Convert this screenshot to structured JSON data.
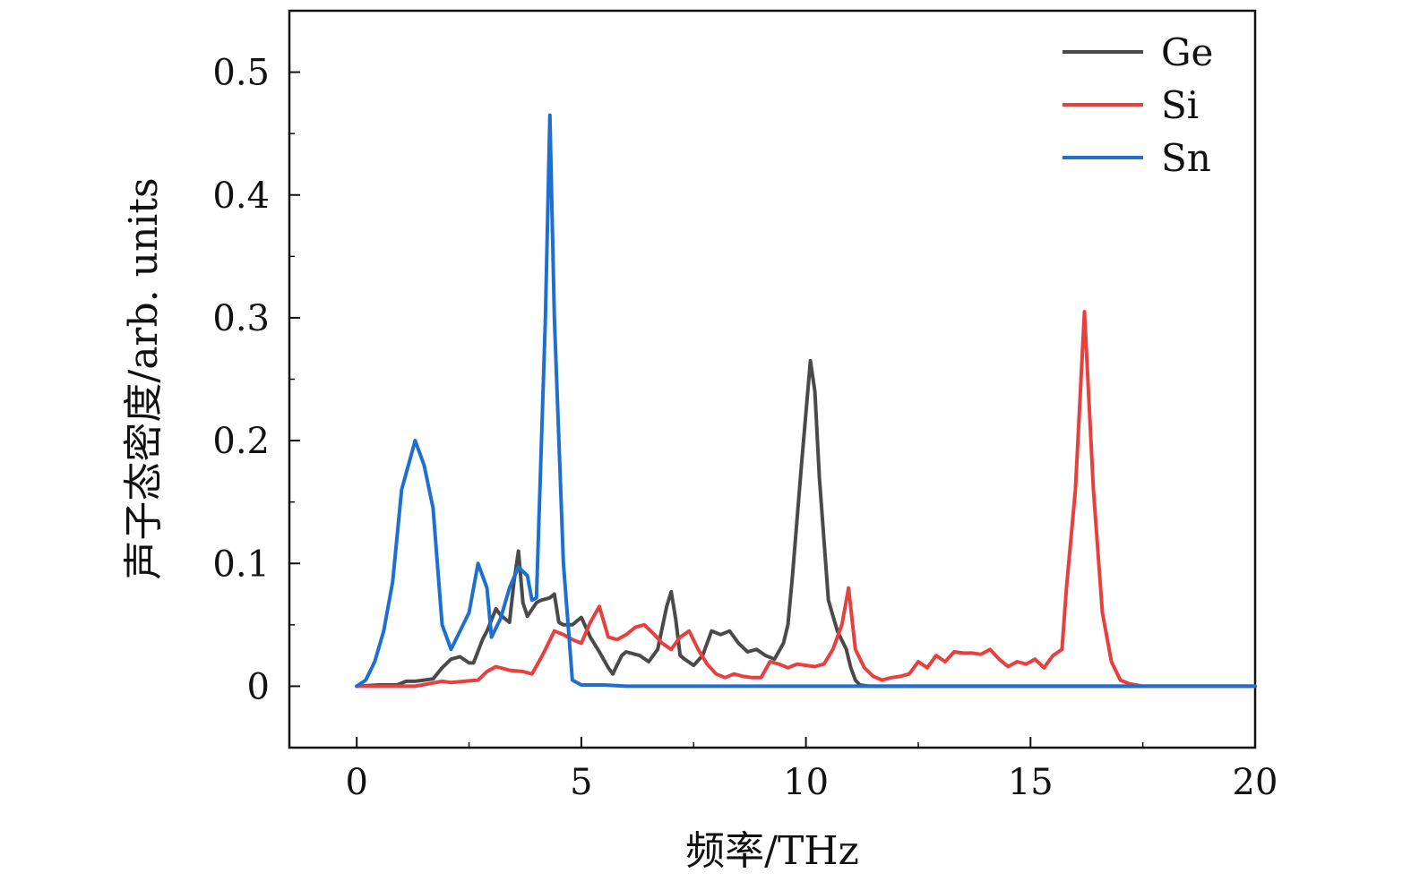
{
  "chart_data": {
    "type": "line",
    "title": "",
    "xlabel": "频率/THz",
    "ylabel": "声子态密度/arb. units",
    "xlim": [
      -1.5,
      20
    ],
    "ylim": [
      -0.05,
      0.55
    ],
    "xticks": [
      0,
      5,
      10,
      15,
      20
    ],
    "xtick_labels": [
      "0",
      "5",
      "10",
      "15",
      "20"
    ],
    "yticks": [
      0,
      0.1,
      0.2,
      0.3,
      0.4,
      0.5
    ],
    "ytick_labels": [
      "0",
      "0.1",
      "0.2",
      "0.3",
      "0.4",
      "0.5"
    ],
    "grid": false,
    "legend_position": "top-right",
    "series": [
      {
        "name": "Ge",
        "color": "#4a4a4a",
        "x": [
          0,
          0.5,
          0.9,
          1.1,
          1.3,
          1.5,
          1.7,
          1.9,
          2.1,
          2.3,
          2.5,
          2.6,
          2.8,
          2.9,
          3.1,
          3.2,
          3.4,
          3.5,
          3.6,
          3.7,
          3.8,
          4.0,
          4.1,
          4.3,
          4.4,
          4.5,
          4.6,
          4.8,
          5.0,
          5.1,
          5.2,
          5.4,
          5.6,
          5.7,
          5.9,
          6.0,
          6.2,
          6.3,
          6.5,
          6.7,
          6.9,
          7.0,
          7.1,
          7.2,
          7.3,
          7.5,
          7.7,
          7.9,
          8.1,
          8.3,
          8.5,
          8.7,
          8.9,
          9.1,
          9.3,
          9.5,
          9.6,
          9.7,
          9.9,
          10.1,
          10.2,
          10.3,
          10.5,
          10.7,
          10.9,
          11.0,
          11.1,
          11.2,
          11.4,
          12,
          14,
          16,
          18,
          20
        ],
        "y": [
          0,
          0.001,
          0.001,
          0.004,
          0.004,
          0.005,
          0.006,
          0.015,
          0.022,
          0.024,
          0.019,
          0.019,
          0.038,
          0.045,
          0.063,
          0.058,
          0.052,
          0.085,
          0.11,
          0.068,
          0.057,
          0.068,
          0.07,
          0.072,
          0.075,
          0.052,
          0.05,
          0.05,
          0.056,
          0.048,
          0.04,
          0.028,
          0.015,
          0.01,
          0.025,
          0.028,
          0.026,
          0.025,
          0.02,
          0.03,
          0.065,
          0.077,
          0.055,
          0.025,
          0.022,
          0.017,
          0.025,
          0.045,
          0.042,
          0.045,
          0.035,
          0.028,
          0.03,
          0.025,
          0.022,
          0.035,
          0.05,
          0.09,
          0.18,
          0.265,
          0.24,
          0.17,
          0.07,
          0.045,
          0.03,
          0.015,
          0.005,
          0.001,
          0,
          0,
          0,
          0,
          0,
          0
        ]
      },
      {
        "name": "Si",
        "color": "#e8403e",
        "x": [
          0,
          0.5,
          1.0,
          1.3,
          1.6,
          1.9,
          2.1,
          2.4,
          2.7,
          2.9,
          3.1,
          3.4,
          3.7,
          3.9,
          4.1,
          4.2,
          4.4,
          4.6,
          4.8,
          5.0,
          5.2,
          5.4,
          5.6,
          5.8,
          6.0,
          6.2,
          6.4,
          6.6,
          6.8,
          7.0,
          7.2,
          7.4,
          7.6,
          7.8,
          8.0,
          8.2,
          8.4,
          8.6,
          8.8,
          9.0,
          9.2,
          9.4,
          9.6,
          9.8,
          10.0,
          10.2,
          10.4,
          10.6,
          10.8,
          10.95,
          11.1,
          11.3,
          11.5,
          11.7,
          11.9,
          12.1,
          12.3,
          12.5,
          12.7,
          12.9,
          13.1,
          13.3,
          13.5,
          13.7,
          13.9,
          14.1,
          14.3,
          14.5,
          14.7,
          14.9,
          15.1,
          15.3,
          15.5,
          15.7,
          15.8,
          16.0,
          16.2,
          16.4,
          16.6,
          16.8,
          17.0,
          17.2,
          17.5,
          18,
          20
        ],
        "y": [
          0,
          0,
          0,
          0,
          0.002,
          0.004,
          0.003,
          0.004,
          0.005,
          0.012,
          0.016,
          0.013,
          0.012,
          0.01,
          0.023,
          0.03,
          0.045,
          0.042,
          0.038,
          0.035,
          0.052,
          0.065,
          0.04,
          0.038,
          0.042,
          0.048,
          0.05,
          0.043,
          0.035,
          0.03,
          0.04,
          0.045,
          0.03,
          0.018,
          0.01,
          0.007,
          0.01,
          0.008,
          0.007,
          0.007,
          0.02,
          0.018,
          0.015,
          0.018,
          0.017,
          0.016,
          0.018,
          0.03,
          0.05,
          0.08,
          0.03,
          0.015,
          0.008,
          0.005,
          0.007,
          0.008,
          0.01,
          0.02,
          0.015,
          0.025,
          0.02,
          0.028,
          0.027,
          0.027,
          0.026,
          0.03,
          0.022,
          0.016,
          0.02,
          0.018,
          0.022,
          0.015,
          0.025,
          0.03,
          0.08,
          0.16,
          0.305,
          0.16,
          0.06,
          0.02,
          0.005,
          0.002,
          0,
          0,
          0
        ]
      },
      {
        "name": "Sn",
        "color": "#1f6fd1",
        "x": [
          0,
          0.2,
          0.4,
          0.6,
          0.8,
          1.0,
          1.3,
          1.5,
          1.7,
          1.9,
          2.0,
          2.1,
          2.3,
          2.5,
          2.7,
          2.9,
          3.0,
          3.2,
          3.4,
          3.6,
          3.8,
          3.9,
          4.0,
          4.2,
          4.3,
          4.4,
          4.6,
          4.8,
          5.0,
          5.5,
          6,
          8,
          10,
          12,
          14,
          16,
          18,
          20
        ],
        "y": [
          0,
          0.005,
          0.02,
          0.045,
          0.085,
          0.16,
          0.2,
          0.18,
          0.145,
          0.05,
          0.04,
          0.03,
          0.045,
          0.06,
          0.1,
          0.08,
          0.04,
          0.055,
          0.08,
          0.097,
          0.09,
          0.07,
          0.072,
          0.3,
          0.465,
          0.3,
          0.1,
          0.005,
          0.001,
          0.001,
          0,
          0,
          0,
          0,
          0,
          0,
          0,
          0
        ]
      }
    ]
  }
}
